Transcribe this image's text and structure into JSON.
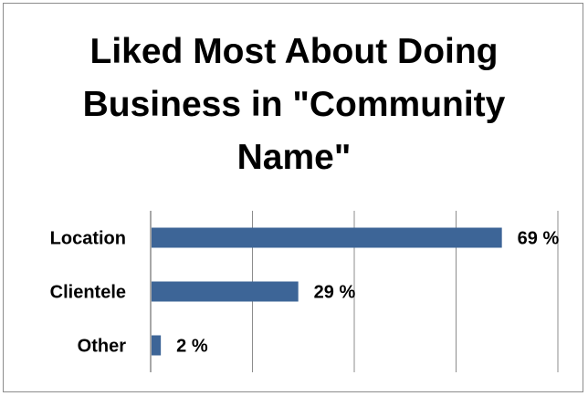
{
  "chart_data": {
    "type": "bar",
    "orientation": "horizontal",
    "title": "Liked Most About Doing Business in \"Community Name\"",
    "categories": [
      "Location",
      "Clientele",
      "Other"
    ],
    "values": [
      69,
      29,
      2
    ],
    "value_suffix": " %",
    "data_labels": [
      "69 %",
      "29 %",
      "2 %"
    ],
    "xlim": [
      0,
      80
    ],
    "grid": true,
    "legend": "none",
    "bar_color": "#3d6597",
    "grid_color": "#8c8c8c"
  }
}
